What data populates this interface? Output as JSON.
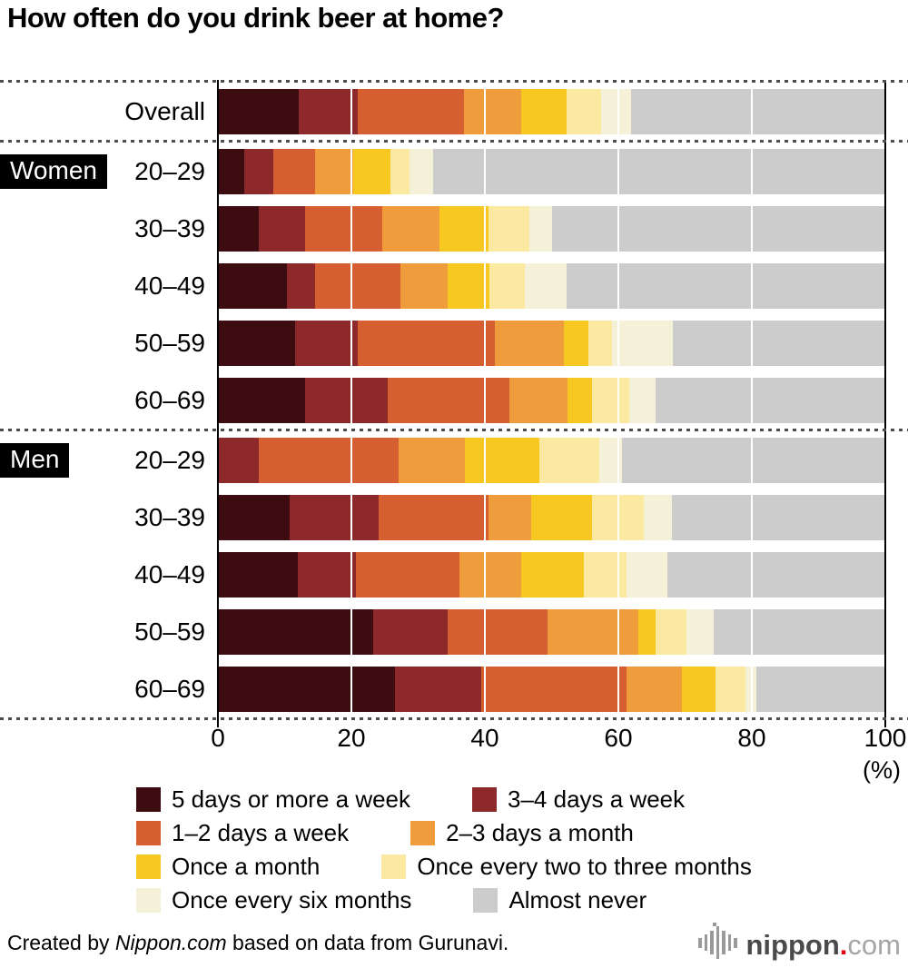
{
  "title": "How often do you drink beer at home?",
  "chart_data": {
    "type": "bar",
    "stacked": true,
    "orientation": "horizontal",
    "xlim": [
      0,
      100
    ],
    "x_ticks": [
      "0",
      "20",
      "40",
      "60",
      "80",
      "100"
    ],
    "x_unit": "(%)",
    "gridlines": [
      20,
      40,
      60,
      80
    ],
    "axis_lines": [
      0,
      100
    ],
    "series": [
      {
        "name": "5 days or more a week",
        "color": "#3d0c10"
      },
      {
        "name": "3–4 days a week",
        "color": "#8d292b"
      },
      {
        "name": "1–2 days a week",
        "color": "#d65f32"
      },
      {
        "name": "2–3 days a month",
        "color": "#ee9c3c"
      },
      {
        "name": "Once a month",
        "color": "#f7c822"
      },
      {
        "name": "Once every two to three months",
        "color": "#fbe9a2"
      },
      {
        "name": "Once every six months",
        "color": "#f4f1d8"
      },
      {
        "name": "Almost never",
        "color": "#cccccc"
      }
    ],
    "sections": [
      {
        "badge": "",
        "rows": [
          {
            "label": "Overall",
            "values": [
              12.1,
              8.9,
              15.9,
              8.6,
              6.7,
              5.2,
              4.5,
              38.1
            ]
          }
        ]
      },
      {
        "badge": "Women",
        "rows": [
          {
            "label": "20–29",
            "values": [
              4.0,
              4.3,
              6.3,
              5.7,
              5.5,
              2.9,
              3.5,
              67.8
            ]
          },
          {
            "label": "30–39",
            "values": [
              6.1,
              7.0,
              11.5,
              8.6,
              7.3,
              6.2,
              3.4,
              49.9
            ]
          },
          {
            "label": "40–49",
            "values": [
              10.4,
              4.1,
              12.9,
              7.0,
              6.3,
              5.3,
              6.2,
              47.8
            ]
          },
          {
            "label": "50–59",
            "values": [
              11.5,
              9.5,
              20.5,
              10.4,
              3.6,
              3.5,
              9.2,
              31.8
            ]
          },
          {
            "label": "60–69",
            "values": [
              13.1,
              12.4,
              18.2,
              8.7,
              3.7,
              5.6,
              3.9,
              34.4
            ]
          }
        ]
      },
      {
        "badge": "Men",
        "rows": [
          {
            "label": "20–29",
            "values": [
              0,
              6.1,
              21.0,
              9.9,
              11.2,
              8.9,
              3.5,
              39.4
            ]
          },
          {
            "label": "30–39",
            "values": [
              10.7,
              13.4,
              16.4,
              6.4,
              9.2,
              7.7,
              4.3,
              31.9
            ]
          },
          {
            "label": "40–49",
            "values": [
              12.0,
              8.7,
              15.5,
              9.3,
              9.3,
              6.4,
              6.1,
              32.7
            ]
          },
          {
            "label": "50–59",
            "values": [
              23.2,
              11.2,
              15.0,
              13.6,
              2.6,
              4.6,
              4.1,
              25.7
            ]
          },
          {
            "label": "60–69",
            "values": [
              26.5,
              12.9,
              21.8,
              8.3,
              5.1,
              4.5,
              1.6,
              19.3
            ]
          }
        ]
      }
    ],
    "legend_rows": [
      [
        0,
        1
      ],
      [
        2,
        3
      ],
      [
        4,
        5
      ],
      [
        6,
        7
      ]
    ]
  },
  "footer": {
    "credit_prefix": "Created by ",
    "credit_brand": "Nippon.com",
    "credit_suffix": " based on data from Gurunavi.",
    "logo": {
      "name": "nippon",
      "dot": ".",
      "tld": "com"
    }
  }
}
